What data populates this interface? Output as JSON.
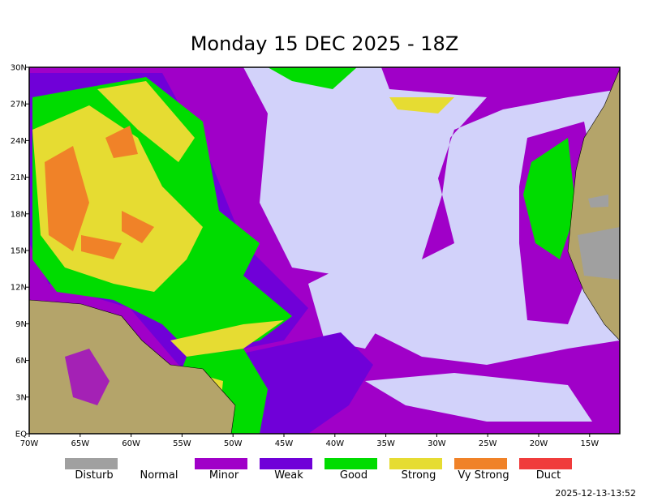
{
  "title": "Monday 15 DEC 2025 - 18Z",
  "lat_labels": [
    "30N",
    "27N",
    "24N",
    "21N",
    "18N",
    "15N",
    "12N",
    "9N",
    "6N",
    "3N",
    "EQ"
  ],
  "lon_labels": [
    "70W",
    "65W",
    "60W",
    "55W",
    "50W",
    "45W",
    "40W",
    "35W",
    "30W",
    "25W",
    "20W",
    "15W"
  ],
  "legend": [
    {
      "label": "Disturb",
      "color": "#a0a0a0"
    },
    {
      "label": "Normal",
      "color": null
    },
    {
      "label": "Minor",
      "color": "#a000c8"
    },
    {
      "label": "Weak",
      "color": "#7000d8"
    },
    {
      "label": "Good",
      "color": "#00dc00"
    },
    {
      "label": "Strong",
      "color": "#e6dc32"
    },
    {
      "label": "Vy Strong",
      "color": "#f08228"
    },
    {
      "label": "Duct",
      "color": "#f03c3c"
    }
  ],
  "timestamp": "2025-12-13-13:52"
}
